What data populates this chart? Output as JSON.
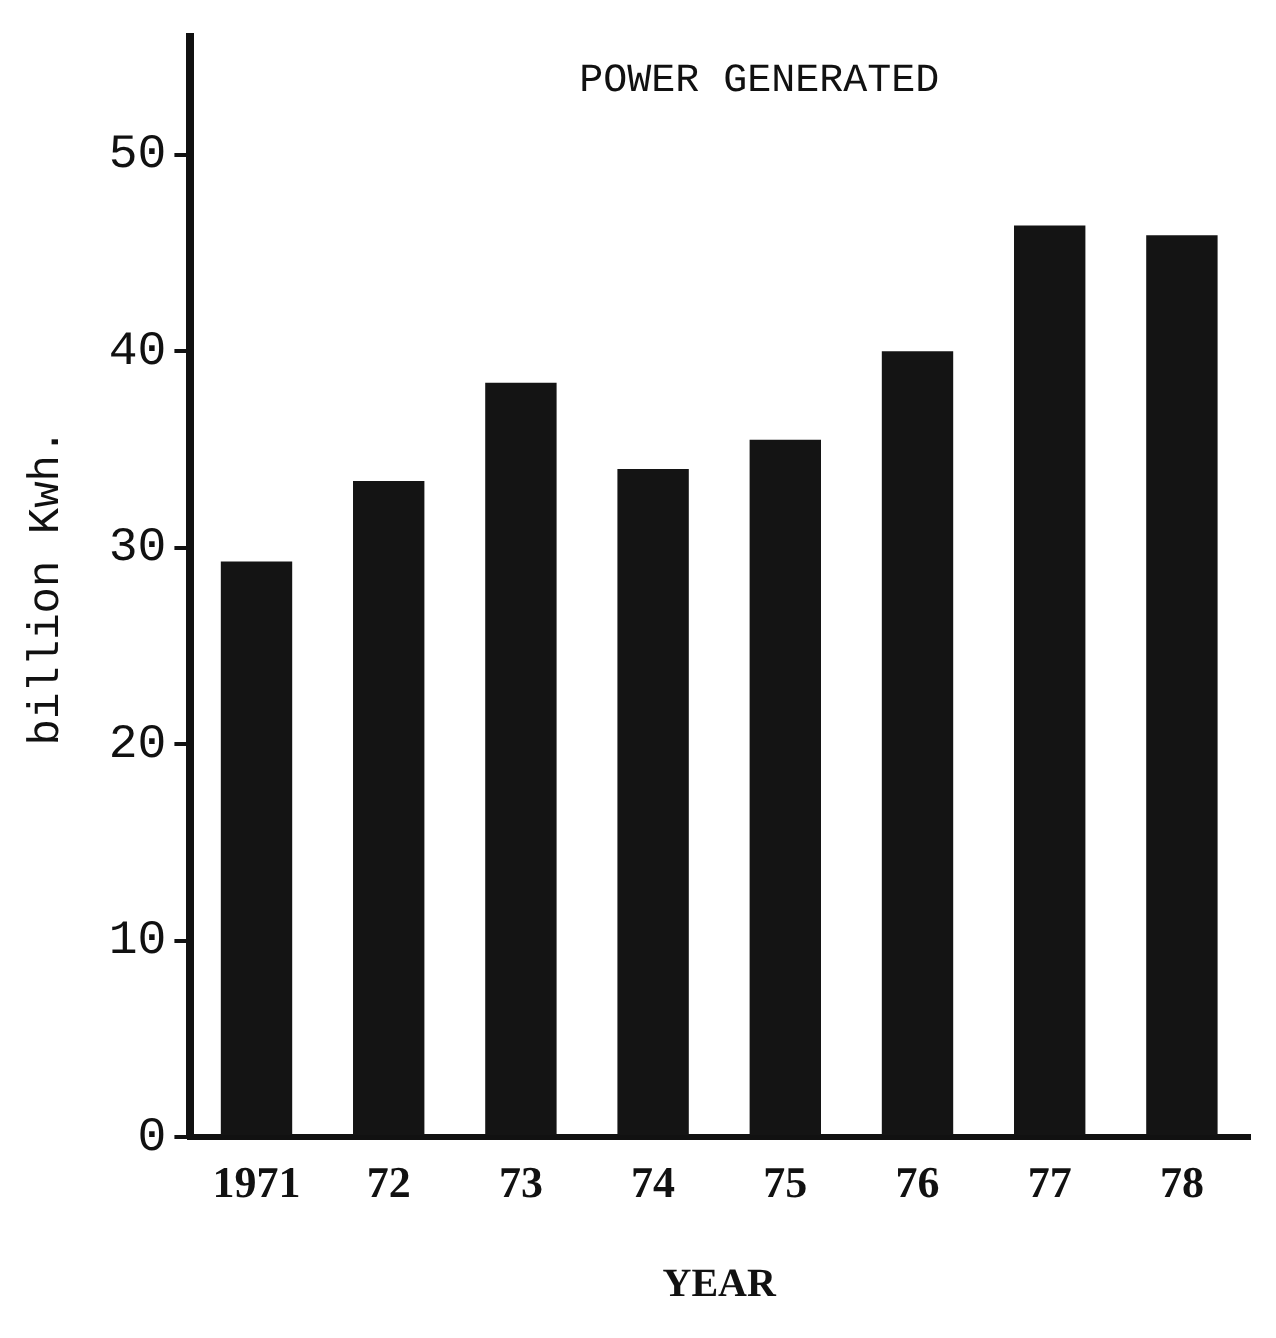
{
  "chart_data": {
    "type": "bar",
    "title": "POWER GENERATED",
    "xlabel": "YEAR",
    "ylabel": "billion Kwh.",
    "categories": [
      "1971",
      "72",
      "73",
      "74",
      "75",
      "76",
      "77",
      "78"
    ],
    "values": [
      29.3,
      33.4,
      38.4,
      34.0,
      35.5,
      40.0,
      46.4,
      45.9
    ],
    "color": "#141414",
    "ylim": [
      0,
      56
    ],
    "yticks": [
      0,
      10,
      20,
      30,
      40,
      50
    ],
    "grid": false,
    "legend": false
  }
}
